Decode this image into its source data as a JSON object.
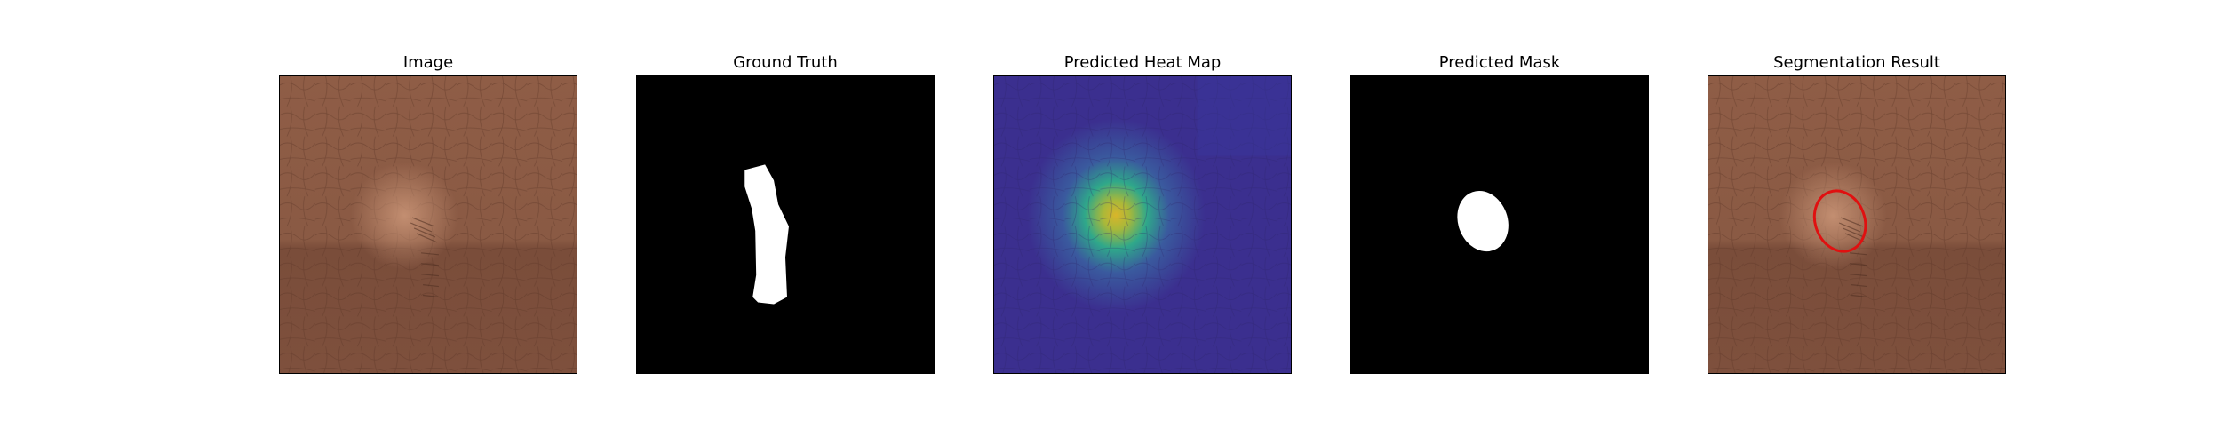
{
  "panels": [
    {
      "id": "image",
      "title": "Image"
    },
    {
      "id": "ground_truth",
      "title": "Ground Truth"
    },
    {
      "id": "heatmap",
      "title": "Predicted Heat Map"
    },
    {
      "id": "mask",
      "title": "Predicted Mask"
    },
    {
      "id": "segmentation",
      "title": "Segmentation Result"
    }
  ],
  "colors": {
    "leather_base": "#8a5a45",
    "leather_dark": "#6e4533",
    "leather_light": "#b07a5c",
    "mask_background": "#000000",
    "mask_foreground": "#ffffff",
    "heatmap_low": "#3b2f8f",
    "heatmap_mid": "#2fa88a",
    "heatmap_high": "#d9b52a",
    "contour": "#e01010"
  }
}
